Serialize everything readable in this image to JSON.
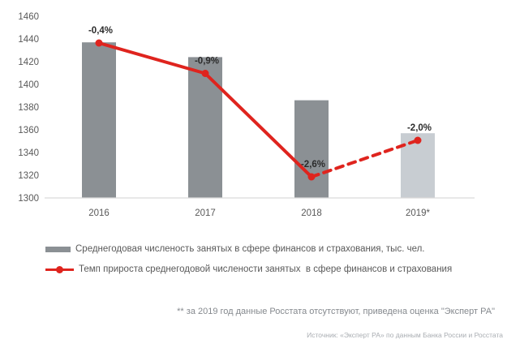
{
  "chart_data": {
    "type": "bar",
    "title": "",
    "categories": [
      "2016",
      "2017",
      "2018",
      "2019*"
    ],
    "series": [
      {
        "name": "Среднегодовая численость занятых в сфере финансов и страхования, тыс. чел.",
        "type": "bar",
        "values": [
          1437,
          1424,
          1386,
          1357
        ]
      },
      {
        "name": "Темп прироста среднегодовой числености занятых  в сфере финансов и страхования",
        "type": "line",
        "values": [
          -0.4,
          -0.9,
          -2.6,
          -2.0
        ],
        "point_labels": [
          "-0,4%",
          "-0,9%",
          "-2,6%",
          "-2,0%"
        ],
        "segment_styles": [
          "solid",
          "solid",
          "dashed"
        ]
      }
    ],
    "ylim": [
      1300,
      1460
    ],
    "yticks": [
      1300,
      1320,
      1340,
      1360,
      1380,
      1400,
      1420,
      1440,
      1460
    ],
    "grid": false,
    "legend_position": "bottom",
    "colors": {
      "bar": "#8b9094",
      "bar_estimate": "#c8cdd2",
      "line": "#df241e",
      "axis_line": "#d9d9d9",
      "tick_text": "#595959",
      "data_label_text": "#2b2b2b"
    },
    "bar_colors": [
      "#8b9094",
      "#8b9094",
      "#8b9094",
      "#c8cdd2"
    ]
  },
  "legend": {
    "items": [
      {
        "label": "Среднегодовая численость занятых в сфере финансов и страхования, тыс. чел."
      },
      {
        "label": "Темп прироста среднегодовой числености занятых  в сфере финансов и страхования"
      }
    ]
  },
  "footnote": "** за 2019 год данные Росстата отсутствуют, приведена оценка \"Эксперт РА\"",
  "source": "Источник: «Эксперт РА» по данным Банка России и Росстата"
}
